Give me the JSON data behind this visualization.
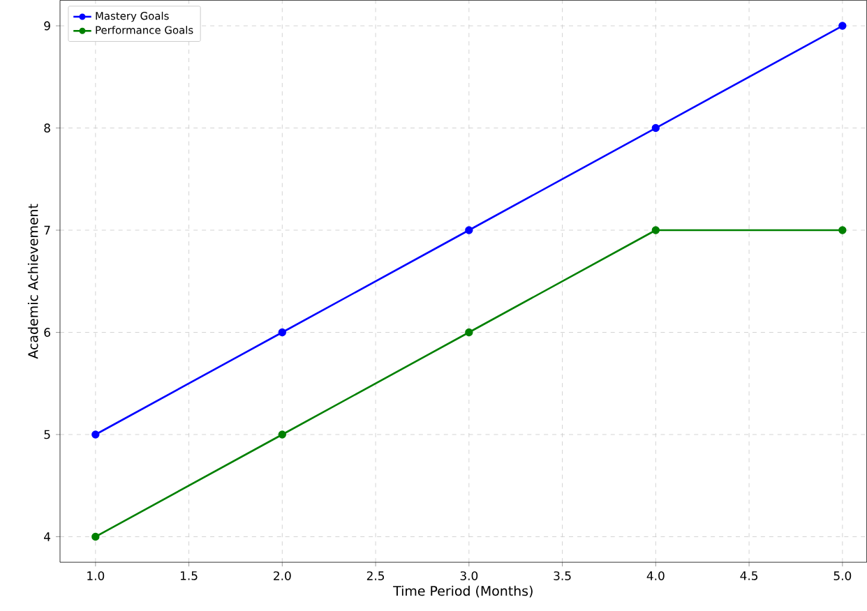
{
  "chart_data": {
    "type": "line",
    "xlabel": "Time Period (Months)",
    "ylabel": "Academic Achievement",
    "x": [
      1,
      2,
      3,
      4,
      5
    ],
    "series": [
      {
        "name": "Mastery Goals",
        "color": "#0000ff",
        "values": [
          5,
          6,
          7,
          8,
          9
        ]
      },
      {
        "name": "Performance Goals",
        "color": "#008000",
        "values": [
          4,
          5,
          6,
          7,
          7
        ]
      }
    ],
    "xlim": [
      0.81,
      5.13
    ],
    "ylim": [
      3.75,
      9.25
    ],
    "xticks": [
      {
        "value": 1,
        "label": "1.0"
      },
      {
        "value": 1.5,
        "label": "1.5"
      },
      {
        "value": 2,
        "label": "2.0"
      },
      {
        "value": 2.5,
        "label": "2.5"
      },
      {
        "value": 3,
        "label": "3.0"
      },
      {
        "value": 3.5,
        "label": "3.5"
      },
      {
        "value": 4,
        "label": "4.0"
      },
      {
        "value": 4.5,
        "label": "4.5"
      },
      {
        "value": 5,
        "label": "5.0"
      }
    ],
    "yticks": [
      4,
      5,
      6,
      7,
      8,
      9
    ],
    "grid": true,
    "legend": "top left",
    "marker": "circle",
    "line_style": "solid"
  }
}
